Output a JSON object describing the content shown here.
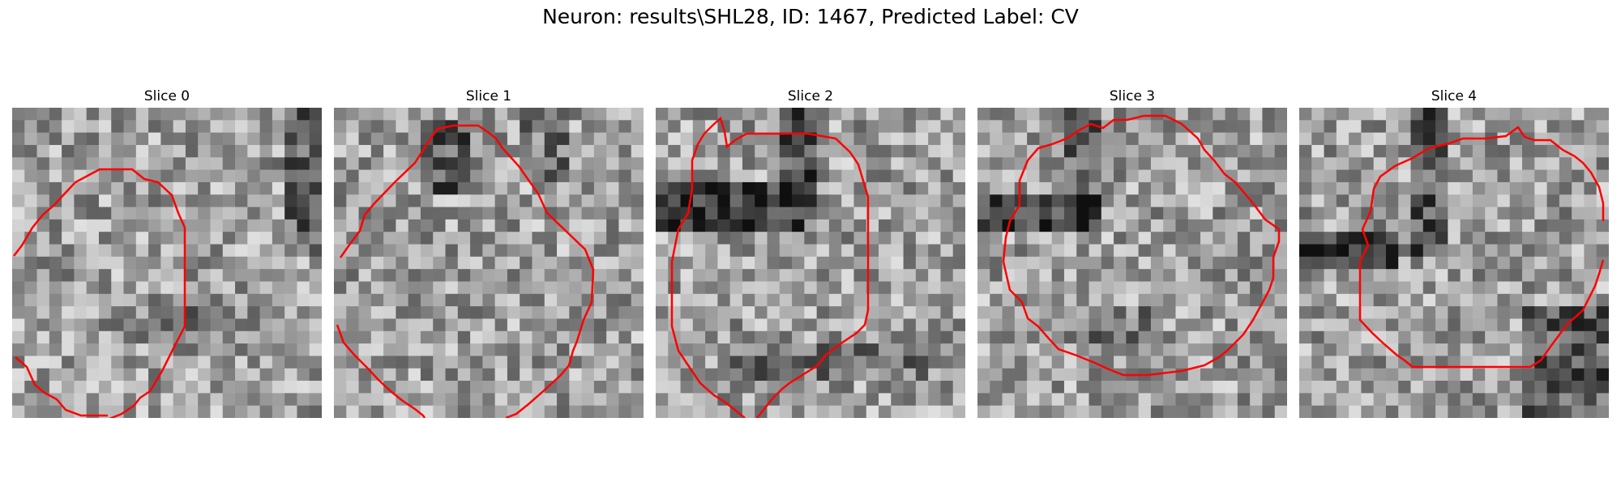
{
  "figure": {
    "title": "Neuron: results\\SHL28, ID: 1467, Predicted Label: CV"
  },
  "colors": {
    "contour": "#ff0000",
    "background": "#ffffff",
    "colormap": "grayscale"
  },
  "slices": [
    {
      "title": "Slice 0"
    },
    {
      "title": "Slice 1"
    },
    {
      "title": "Slice 2"
    },
    {
      "title": "Slice 3"
    },
    {
      "title": "Slice 4"
    }
  ]
}
